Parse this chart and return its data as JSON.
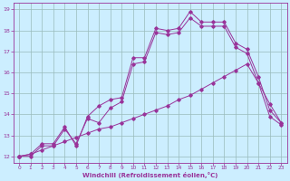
{
  "xlabel": "Windchill (Refroidissement éolien,°C)",
  "bg_color": "#cceeff",
  "line_color": "#993399",
  "grid_color": "#99bbbb",
  "xlim": [
    -0.5,
    23.5
  ],
  "ylim": [
    11.7,
    19.3
  ],
  "yticks": [
    12,
    13,
    14,
    15,
    16,
    17,
    18,
    19
  ],
  "xticks": [
    0,
    1,
    2,
    3,
    4,
    5,
    6,
    7,
    8,
    9,
    10,
    11,
    12,
    13,
    14,
    15,
    16,
    17,
    18,
    19,
    20,
    21,
    22,
    23
  ],
  "line1_x": [
    0,
    1,
    2,
    3,
    4,
    5,
    6,
    7,
    8,
    9,
    10,
    11,
    12,
    13,
    14,
    15,
    16,
    17,
    18,
    19,
    20,
    21,
    22,
    23
  ],
  "line1_y": [
    12.0,
    12.1,
    12.6,
    12.6,
    13.4,
    12.5,
    13.9,
    14.4,
    14.7,
    14.8,
    16.7,
    16.7,
    18.1,
    18.0,
    18.1,
    18.9,
    18.4,
    18.4,
    18.4,
    17.4,
    17.1,
    15.8,
    14.2,
    13.6
  ],
  "line2_x": [
    0,
    1,
    2,
    3,
    4,
    5,
    6,
    7,
    8,
    9,
    10,
    11,
    12,
    13,
    14,
    15,
    16,
    17,
    18,
    19,
    20,
    21,
    22,
    23
  ],
  "line2_y": [
    12.0,
    12.0,
    12.5,
    12.5,
    13.3,
    12.6,
    13.8,
    13.6,
    14.3,
    14.6,
    16.4,
    16.5,
    17.9,
    17.8,
    17.9,
    18.6,
    18.2,
    18.2,
    18.2,
    17.2,
    16.9,
    15.5,
    13.9,
    13.5
  ],
  "line3_x": [
    0,
    1,
    2,
    3,
    4,
    5,
    6,
    7,
    8,
    9,
    10,
    11,
    12,
    13,
    14,
    15,
    16,
    17,
    18,
    19,
    20,
    21,
    22,
    23
  ],
  "line3_y": [
    12.0,
    12.1,
    12.3,
    12.5,
    12.7,
    12.9,
    13.1,
    13.3,
    13.4,
    13.6,
    13.8,
    14.0,
    14.2,
    14.4,
    14.7,
    14.9,
    15.2,
    15.5,
    15.8,
    16.1,
    16.4,
    15.5,
    14.5,
    13.6
  ]
}
